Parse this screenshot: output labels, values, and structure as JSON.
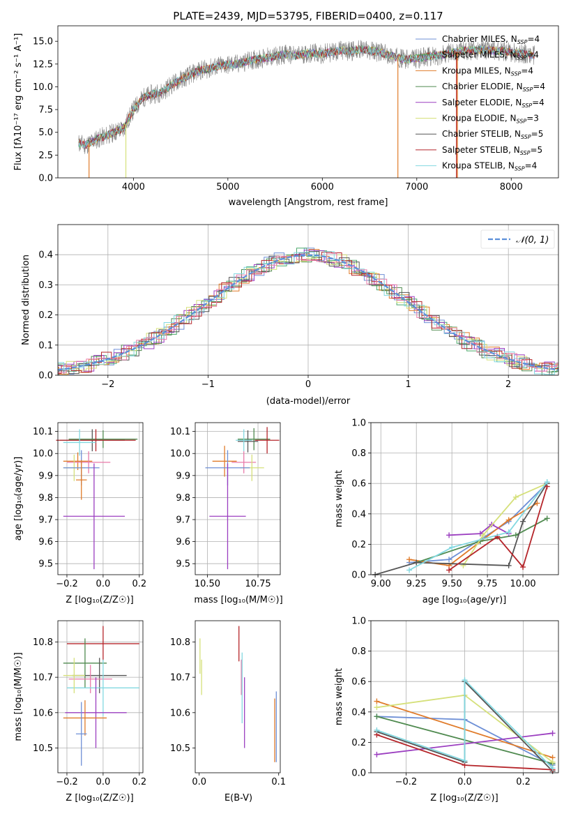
{
  "chart_data": [
    {
      "id": "spectrum",
      "type": "line",
      "title": "PLATE=2439, MJD=53795, FIBERID=0400, z=0.117",
      "xlabel": "wavelength [Angstrom, rest frame]",
      "ylabel": "Flux [fλ10⁻¹⁷ erg cm⁻² s⁻¹ A⁻¹]",
      "xlim": [
        3200,
        8500
      ],
      "ylim": [
        0,
        16.7
      ],
      "xticks": [
        4000,
        5000,
        6000,
        7000,
        8000
      ],
      "yticks": [
        0.0,
        2.5,
        5.0,
        7.5,
        10.0,
        12.5,
        15.0
      ],
      "grid": false,
      "legend_position": "right",
      "observed_envelope": {
        "x": [
          3420,
          3500,
          3600,
          3700,
          3800,
          3900,
          4000,
          4100,
          4200,
          4300,
          4400,
          4500,
          4600,
          4700,
          4800,
          4900,
          5000,
          5100,
          5200,
          5300,
          5400,
          5500,
          5600,
          5700,
          5800,
          5900,
          6000,
          6100,
          6200,
          6300,
          6400,
          6500,
          6600,
          6700,
          6800,
          6900,
          7000,
          7100,
          7200,
          7300,
          7400,
          7500,
          7600,
          7700,
          7800,
          7900,
          8000,
          8100,
          8200,
          8250
        ],
        "y": [
          3.8,
          3.6,
          4.2,
          4.6,
          5.0,
          5.5,
          7.5,
          8.8,
          9.2,
          9.4,
          10.2,
          10.8,
          11.3,
          11.8,
          12.0,
          12.3,
          12.4,
          12.5,
          12.8,
          13.0,
          13.2,
          13.3,
          13.6,
          13.4,
          13.6,
          13.7,
          13.6,
          13.8,
          14.0,
          13.9,
          14.1,
          14.0,
          13.8,
          13.5,
          13.2,
          13.0,
          13.1,
          13.3,
          13.4,
          13.6,
          13.8,
          14.0,
          14.0,
          14.1,
          14.0,
          13.9,
          13.8,
          13.7,
          13.5,
          13.4
        ]
      },
      "series": [
        {
          "name": "Chabrier MILES, N_SSP=4",
          "color": "#6d8fd6"
        },
        {
          "name": "Salpeter MILES, N_SSP=4",
          "color": "#4aa86a"
        },
        {
          "name": "Kroupa MILES, N_SSP=4",
          "color": "#e07b2a"
        },
        {
          "name": "Chabrier ELODIE, N_SSP=4",
          "color": "#4f8a4f"
        },
        {
          "name": "Salpeter ELODIE, N_SSP=4",
          "color": "#9b3ec0"
        },
        {
          "name": "Kroupa ELODIE, N_SSP=3",
          "color": "#d5e07a"
        },
        {
          "name": "Chabrier STELIB, N_SSP=5",
          "color": "#555555"
        },
        {
          "name": "Salpeter STELIB, N_SSP=5",
          "color": "#b5252a"
        },
        {
          "name": "Kroupa STELIB, N_SSP=4",
          "color": "#82d8e0"
        }
      ],
      "legend_labels": [
        {
          "main": "Chabrier MILES, N",
          "sub": "SSP",
          "tail": "=4"
        },
        {
          "main": "Salpeter MILES, N",
          "sub": "SSP",
          "tail": "=4"
        },
        {
          "main": "Kroupa MILES, N",
          "sub": "SSP",
          "tail": "=4"
        },
        {
          "main": "Chabrier ELODIE, N",
          "sub": "SSP",
          "tail": "=4"
        },
        {
          "main": "Salpeter ELODIE, N",
          "sub": "SSP",
          "tail": "=4"
        },
        {
          "main": "Kroupa ELODIE, N",
          "sub": "SSP",
          "tail": "=3"
        },
        {
          "main": "Chabrier STELIB, N",
          "sub": "SSP",
          "tail": "=5"
        },
        {
          "main": "Salpeter STELIB, N",
          "sub": "SSP",
          "tail": "=5"
        },
        {
          "main": "Kroupa STELIB, N",
          "sub": "SSP",
          "tail": "=4"
        }
      ]
    },
    {
      "id": "residuals",
      "type": "line",
      "xlabel": "(data-model)/error",
      "ylabel": "Normed distribution",
      "xlim": [
        -2.5,
        2.5
      ],
      "ylim": [
        0,
        0.5
      ],
      "xticks": [
        -2,
        -1,
        0,
        1,
        2
      ],
      "yticks": [
        0.0,
        0.1,
        0.2,
        0.3,
        0.4
      ],
      "grid": true,
      "legend_position": "top-right",
      "legend_label": "𝒩(0, 1)",
      "gaussian": {
        "mean": 0,
        "sigma": 1,
        "color": "#5b8fd9"
      },
      "histogram_colors": [
        "#6d8fd6",
        "#4aa86a",
        "#e07b2a",
        "#4f8a4f",
        "#9b3ec0",
        "#d5e07a",
        "#555555",
        "#b5252a",
        "#82d8e0",
        "#e879a8"
      ]
    },
    {
      "id": "z-age",
      "type": "scatter",
      "xlabel": "Z [log₁₀(Z/Z☉)]",
      "ylabel": "age [log₁₀(age/yr)]",
      "xlim": [
        -0.25,
        0.22
      ],
      "ylim": [
        9.45,
        10.14
      ],
      "xticks": [
        -0.2,
        0.0,
        0.2
      ],
      "yticks": [
        9.5,
        9.6,
        9.7,
        9.8,
        9.9,
        10.0,
        10.1
      ],
      "grid": true,
      "points": [
        {
          "x": -0.06,
          "y": 10.06,
          "xerr": 0.18,
          "yerr": 0.05,
          "color": "#555555"
        },
        {
          "x": 0.0,
          "y": 10.065,
          "xerr": 0.19,
          "yerr": 0.04,
          "color": "#4f8a4f"
        },
        {
          "x": -0.04,
          "y": 10.06,
          "xerr": 0.22,
          "yerr": 0.05,
          "color": "#b5252a"
        },
        {
          "x": -0.13,
          "y": 10.05,
          "xerr": 0.09,
          "yerr": 0.06,
          "color": "#82d8e0"
        },
        {
          "x": -0.14,
          "y": 9.965,
          "xerr": 0.08,
          "yerr": 0.04,
          "color": "#e07b2a"
        },
        {
          "x": -0.08,
          "y": 9.96,
          "xerr": 0.12,
          "yerr": 0.05,
          "color": "#e879a8"
        },
        {
          "x": -0.16,
          "y": 9.935,
          "xerr": 0.06,
          "yerr": 0.06,
          "color": "#d5e07a"
        },
        {
          "x": -0.12,
          "y": 9.935,
          "xerr": 0.1,
          "yerr": 0.08,
          "color": "#6d8fd6"
        },
        {
          "x": -0.05,
          "y": 9.715,
          "xerr": 0.17,
          "yerr": 0.24,
          "color": "#9b3ec0"
        },
        {
          "x": -0.12,
          "y": 9.88,
          "xerr": 0.03,
          "yerr": 0.09,
          "color": "#e07b2a"
        }
      ]
    },
    {
      "id": "mass-age",
      "type": "scatter",
      "xlabel": "mass [log₁₀(M/M☉)]",
      "xlim": [
        10.44,
        10.86
      ],
      "ylim": [
        9.45,
        10.14
      ],
      "xticks": [
        10.5,
        10.75
      ],
      "yticks": [
        9.5,
        9.6,
        9.7,
        9.8,
        9.9,
        10.0,
        10.1
      ],
      "grid": true,
      "points": [
        {
          "x": 10.73,
          "y": 10.065,
          "xerr": 0.08,
          "yerr": 0.05,
          "color": "#4f8a4f"
        },
        {
          "x": 10.795,
          "y": 10.06,
          "xerr": 0.06,
          "yerr": 0.06,
          "color": "#b5252a"
        },
        {
          "x": 10.7,
          "y": 10.055,
          "xerr": 0.05,
          "yerr": 0.05,
          "color": "#555555"
        },
        {
          "x": 10.68,
          "y": 10.06,
          "xerr": 0.04,
          "yerr": 0.05,
          "color": "#82d8e0"
        },
        {
          "x": 10.585,
          "y": 9.965,
          "xerr": 0.06,
          "yerr": 0.07,
          "color": "#e07b2a"
        },
        {
          "x": 10.68,
          "y": 9.96,
          "xerr": 0.06,
          "yerr": 0.05,
          "color": "#e879a8"
        },
        {
          "x": 10.72,
          "y": 9.935,
          "xerr": 0.06,
          "yerr": 0.06,
          "color": "#d5e07a"
        },
        {
          "x": 10.6,
          "y": 9.935,
          "xerr": 0.11,
          "yerr": 0.08,
          "color": "#6d8fd6"
        },
        {
          "x": 10.6,
          "y": 9.715,
          "xerr": 0.09,
          "yerr": 0.24,
          "color": "#9b3ec0"
        }
      ]
    },
    {
      "id": "age-weight",
      "type": "line",
      "xlabel": "age [log₁₀(age/yr)]",
      "ylabel": "mass weight",
      "xlim": [
        8.93,
        10.25
      ],
      "ylim": [
        0,
        1.0
      ],
      "xticks": [
        9.0,
        9.25,
        9.5,
        9.75,
        10.0
      ],
      "yticks": [
        0.0,
        0.2,
        0.4,
        0.6,
        0.8,
        1.0
      ],
      "grid": true,
      "series": [
        {
          "color": "#6d8fd6",
          "points": [
            [
              9.2,
              0.08
            ],
            [
              9.48,
              0.1
            ],
            [
              9.9,
              0.35
            ],
            [
              10.17,
              0.6
            ]
          ]
        },
        {
          "color": "#e07b2a",
          "points": [
            [
              9.2,
              0.1
            ],
            [
              9.48,
              0.06
            ],
            [
              9.9,
              0.36
            ],
            [
              10.1,
              0.47
            ]
          ]
        },
        {
          "color": "#4f8a4f",
          "points": [
            [
              9.25,
              0.08
            ],
            [
              9.7,
              0.22
            ],
            [
              9.95,
              0.26
            ],
            [
              10.17,
              0.37
            ]
          ]
        },
        {
          "color": "#9b3ec0",
          "points": [
            [
              9.48,
              0.26
            ],
            [
              9.7,
              0.27
            ],
            [
              9.78,
              0.33
            ],
            [
              9.9,
              0.27
            ]
          ]
        },
        {
          "color": "#d5e07a",
          "points": [
            [
              9.58,
              0.06
            ],
            [
              9.72,
              0.26
            ],
            [
              9.95,
              0.51
            ],
            [
              10.17,
              0.6
            ]
          ]
        },
        {
          "color": "#555555",
          "points": [
            [
              8.96,
              0.0
            ],
            [
              9.25,
              0.08
            ],
            [
              9.9,
              0.06
            ],
            [
              10.0,
              0.35
            ],
            [
              10.17,
              0.6
            ]
          ]
        },
        {
          "color": "#b5252a",
          "points": [
            [
              9.48,
              0.03
            ],
            [
              9.82,
              0.25
            ],
            [
              10.0,
              0.05
            ],
            [
              10.17,
              0.58
            ]
          ]
        },
        {
          "color": "#82d8e0",
          "points": [
            [
              9.2,
              0.03
            ],
            [
              9.5,
              0.18
            ],
            [
              9.9,
              0.28
            ],
            [
              10.17,
              0.61
            ]
          ]
        }
      ]
    },
    {
      "id": "z-mass",
      "type": "scatter",
      "xlabel": "Z [log₁₀(Z/Z☉)]",
      "ylabel": "mass [log₁₀(M/M☉)]",
      "xlim": [
        -0.25,
        0.22
      ],
      "ylim": [
        10.43,
        10.86
      ],
      "xticks": [
        -0.2,
        0.0,
        0.2
      ],
      "yticks": [
        10.5,
        10.6,
        10.7,
        10.8
      ],
      "grid": true,
      "points": [
        {
          "x": 0.0,
          "y": 10.795,
          "xerr": 0.2,
          "yerr": 0.05,
          "color": "#b5252a"
        },
        {
          "x": -0.1,
          "y": 10.74,
          "xerr": 0.12,
          "yerr": 0.07,
          "color": "#4f8a4f"
        },
        {
          "x": -0.02,
          "y": 10.705,
          "xerr": 0.15,
          "yerr": 0.05,
          "color": "#555555"
        },
        {
          "x": -0.07,
          "y": 10.695,
          "xerr": 0.12,
          "yerr": 0.04,
          "color": "#e879a8"
        },
        {
          "x": 0.0,
          "y": 10.67,
          "xerr": 0.2,
          "yerr": 0.08,
          "color": "#82d8e0"
        },
        {
          "x": -0.16,
          "y": 10.705,
          "xerr": 0.06,
          "yerr": 0.05,
          "color": "#d5e07a"
        },
        {
          "x": -0.04,
          "y": 10.6,
          "xerr": 0.17,
          "yerr": 0.1,
          "color": "#9b3ec0"
        },
        {
          "x": -0.1,
          "y": 10.585,
          "xerr": 0.12,
          "yerr": 0.05,
          "color": "#e07b2a"
        },
        {
          "x": -0.12,
          "y": 10.54,
          "xerr": 0.03,
          "yerr": 0.09,
          "color": "#6d8fd6"
        }
      ]
    },
    {
      "id": "ebv-mass",
      "type": "scatter",
      "xlabel": "E(B-V)",
      "xlim": [
        -0.005,
        0.102
      ],
      "ylim": [
        10.43,
        10.86
      ],
      "xticks": [
        0.0,
        0.1
      ],
      "yticks": [
        10.5,
        10.6,
        10.7,
        10.8
      ],
      "grid": false,
      "points": [
        {
          "x": 0.001,
          "y": 10.76,
          "yerr": 0.05,
          "color": "#d5e07a"
        },
        {
          "x": 0.003,
          "y": 10.7,
          "yerr": 0.05,
          "color": "#d5e07a"
        },
        {
          "x": 0.05,
          "y": 10.795,
          "yerr": 0.05,
          "color": "#b5252a"
        },
        {
          "x": 0.053,
          "y": 10.7,
          "yerr": 0.05,
          "color": "#e879a8"
        },
        {
          "x": 0.054,
          "y": 10.67,
          "yerr": 0.1,
          "color": "#82d8e0"
        },
        {
          "x": 0.057,
          "y": 10.6,
          "yerr": 0.1,
          "color": "#9b3ec0"
        },
        {
          "x": 0.095,
          "y": 10.55,
          "yerr": 0.09,
          "color": "#e07b2a"
        },
        {
          "x": 0.097,
          "y": 10.56,
          "yerr": 0.1,
          "color": "#6d8fd6"
        }
      ]
    },
    {
      "id": "z-weight",
      "type": "line",
      "xlabel": "Z [log₁₀(Z/Z☉)]",
      "ylabel": "mass weight",
      "xlim": [
        -0.32,
        0.32
      ],
      "ylim": [
        0,
        1.0
      ],
      "xticks": [
        -0.2,
        0.0,
        0.2
      ],
      "yticks": [
        0.0,
        0.2,
        0.4,
        0.6,
        0.8,
        1.0
      ],
      "grid": true,
      "series": [
        {
          "color": "#6d8fd6",
          "points": [
            [
              -0.3,
              0.37
            ],
            [
              0.0,
              0.35
            ],
            [
              0.3,
              0.05
            ]
          ]
        },
        {
          "color": "#e07b2a",
          "points": [
            [
              -0.3,
              0.47
            ],
            [
              0.3,
              0.1
            ]
          ]
        },
        {
          "color": "#4f8a4f",
          "points": [
            [
              -0.3,
              0.37
            ],
            [
              0.3,
              0.06
            ]
          ]
        },
        {
          "color": "#9b3ec0",
          "points": [
            [
              -0.3,
              0.12
            ],
            [
              0.3,
              0.26
            ]
          ]
        },
        {
          "color": "#d5e07a",
          "points": [
            [
              -0.3,
              0.43
            ],
            [
              0.0,
              0.51
            ],
            [
              0.3,
              0.07
            ]
          ]
        },
        {
          "color": "#555555",
          "points": [
            [
              -0.3,
              0.27
            ],
            [
              0.0,
              0.07
            ],
            [
              0.0,
              0.6
            ],
            [
              0.3,
              0.01
            ]
          ]
        },
        {
          "color": "#b5252a",
          "points": [
            [
              -0.3,
              0.25
            ],
            [
              0.0,
              0.05
            ],
            [
              0.3,
              0.02
            ]
          ]
        },
        {
          "color": "#82d8e0",
          "points": [
            [
              -0.3,
              0.28
            ],
            [
              0.0,
              0.08
            ],
            [
              0.0,
              0.61
            ],
            [
              0.3,
              0.03
            ]
          ]
        }
      ]
    }
  ]
}
